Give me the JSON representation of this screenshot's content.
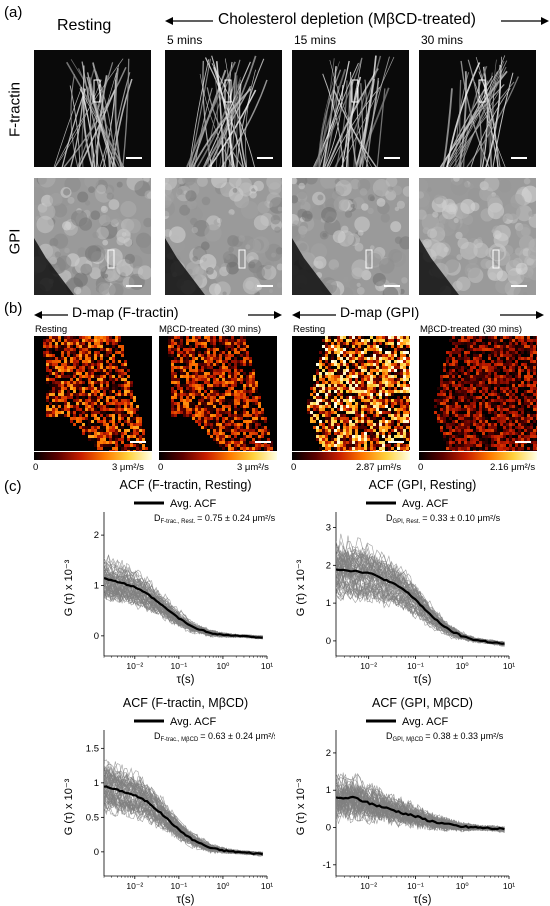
{
  "panel_labels": {
    "a": "(a)",
    "b": "(b)",
    "c": "(c)"
  },
  "panel_a": {
    "resting_label": "Resting",
    "depletion_header": "Cholesterol depletion (MβCD-treated)",
    "timepoints": [
      "5 mins",
      "15 mins",
      "30 mins"
    ],
    "row_labels": [
      "F-tractin",
      "GPI"
    ]
  },
  "panel_b": {
    "header_left": "D-map (F-tractin)",
    "header_right": "D-map (GPI)",
    "maps": [
      {
        "label": "Resting",
        "cbar_min": "0",
        "cbar_max": "3 μm²/s"
      },
      {
        "label": "MβCD-treated (30 mins)",
        "cbar_min": "0",
        "cbar_max": "3 μm²/s"
      },
      {
        "label": "Resting",
        "cbar_min": "0",
        "cbar_max": "2.87 μm²/s"
      },
      {
        "label": "MβCD-treated (30 mins)",
        "cbar_min": "0",
        "cbar_max": "2.16 μm²/s"
      }
    ]
  },
  "colors": {
    "trace": "#808080",
    "avg": "#000000",
    "cmap_hot": [
      "#000000",
      "#5a0000",
      "#c81e00",
      "#ff7a00",
      "#ffd23c",
      "#ffffe6"
    ]
  },
  "chart_data": [
    {
      "type": "line",
      "title": "ACF (F-tractin, Resting)",
      "xlabel": "τ(s)",
      "ylabel": "G (τ) x 10⁻³",
      "x_scale": "log",
      "xlim": [
        0.002,
        10
      ],
      "ylim": [
        -0.4,
        2.3
      ],
      "yticks": [
        "0",
        "1",
        "2"
      ],
      "xticks": [
        "10⁻²",
        "10⁻¹",
        "10⁰",
        "10¹"
      ],
      "legend": "Avg. ACF",
      "annotation": "D",
      "annotation_sub": "F-trac., Rest.",
      "annotation_value": "= 0.75 ± 0.24 μm²/s",
      "avg": {
        "x": [
          0.002,
          0.005,
          0.01,
          0.02,
          0.05,
          0.1,
          0.2,
          0.5,
          1,
          2,
          5,
          8
        ],
        "y": [
          1.15,
          1.05,
          0.97,
          0.82,
          0.55,
          0.35,
          0.18,
          0.06,
          0.02,
          0.0,
          -0.02,
          -0.03
        ]
      },
      "spread": 0.28
    },
    {
      "type": "line",
      "title": "ACF (GPI, Resting)",
      "xlabel": "τ(s)",
      "ylabel": "G (τ) x 10⁻³",
      "x_scale": "log",
      "xlim": [
        0.002,
        10
      ],
      "ylim": [
        -0.4,
        3.2
      ],
      "yticks": [
        "0",
        "1",
        "2",
        "3"
      ],
      "xticks": [
        "10⁻²",
        "10⁻¹",
        "10⁰",
        "10¹"
      ],
      "legend": "Avg. ACF",
      "annotation": "D",
      "annotation_sub": "GPI, Rest.",
      "annotation_value": "= 0.33 ± 0.10 μm²/s",
      "avg": {
        "x": [
          0.002,
          0.005,
          0.01,
          0.02,
          0.05,
          0.1,
          0.2,
          0.5,
          1,
          2,
          5,
          8
        ],
        "y": [
          1.9,
          1.85,
          1.8,
          1.65,
          1.4,
          1.1,
          0.7,
          0.3,
          0.12,
          0.02,
          -0.05,
          -0.08
        ]
      },
      "spread": 0.55
    },
    {
      "type": "line",
      "title": "ACF (F-tractin, MβCD)",
      "xlabel": "τ(s)",
      "ylabel": "G (τ) x 10⁻³",
      "x_scale": "log",
      "xlim": [
        0.002,
        10
      ],
      "ylim": [
        -0.35,
        1.65
      ],
      "yticks": [
        "0",
        "0.5",
        "1",
        "1.5"
      ],
      "xticks": [
        "10⁻²",
        "10⁻¹",
        "10⁰",
        "10¹"
      ],
      "legend": "Avg. ACF",
      "annotation": "D",
      "annotation_sub": "F-trac., MβCD",
      "annotation_value": "= 0.63 ± 0.24 μm²/s",
      "avg": {
        "x": [
          0.002,
          0.005,
          0.01,
          0.02,
          0.05,
          0.1,
          0.2,
          0.5,
          1,
          2,
          5,
          8
        ],
        "y": [
          0.95,
          0.88,
          0.82,
          0.72,
          0.5,
          0.32,
          0.18,
          0.06,
          0.02,
          0.0,
          -0.02,
          -0.03
        ]
      },
      "spread": 0.25
    },
    {
      "type": "line",
      "title": "ACF (GPI, MβCD)",
      "xlabel": "τ(s)",
      "ylabel": "G (τ) x 10⁻³",
      "x_scale": "log",
      "xlim": [
        0.002,
        10
      ],
      "ylim": [
        -1.3,
        2.4
      ],
      "yticks": [
        "-1",
        "0",
        "1",
        "2"
      ],
      "xticks": [
        "10⁻²",
        "10⁻¹",
        "10⁰",
        "10¹"
      ],
      "legend": "Avg. ACF",
      "annotation": "D",
      "annotation_sub": "GPI, MβCD",
      "annotation_value": "= 0.38 ± 0.33 μm²/s",
      "avg": {
        "x": [
          0.002,
          0.005,
          0.01,
          0.02,
          0.05,
          0.1,
          0.2,
          0.5,
          1,
          2,
          5,
          8
        ],
        "y": [
          0.78,
          0.8,
          0.65,
          0.55,
          0.4,
          0.3,
          0.18,
          0.08,
          0.02,
          0.0,
          -0.03,
          -0.05
        ]
      },
      "spread": 0.7
    }
  ]
}
